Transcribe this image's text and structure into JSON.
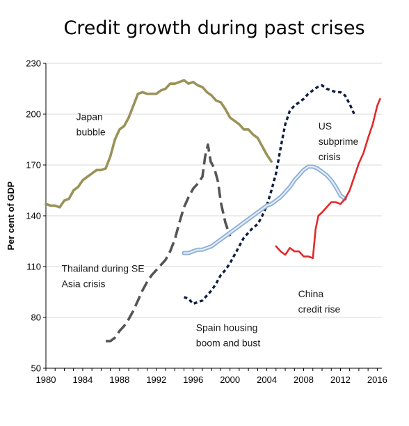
{
  "chart_data": {
    "type": "line",
    "title": "Credit growth during past crises",
    "xlabel": "",
    "ylabel": "Per cent of GDP",
    "xlim": [
      1980,
      2016.5
    ],
    "ylim": [
      50,
      230
    ],
    "xticks": [
      1980,
      1984,
      1988,
      1992,
      1996,
      2000,
      2004,
      2008,
      2012,
      2016
    ],
    "yticks": [
      50,
      80,
      110,
      140,
      170,
      200,
      230
    ],
    "grid": "horizontal",
    "legend": "none",
    "colors": {
      "japan": "#9a9258",
      "thailand": "#555555",
      "us": "#0f1f3f",
      "spain": "#aac4e4",
      "china": "#e02a2a",
      "grid": "#d9d9d9",
      "axis": "#000000"
    },
    "series": [
      {
        "key": "japan",
        "points": [
          [
            1980,
            147
          ],
          [
            1980.5,
            146
          ],
          [
            1981,
            146
          ],
          [
            1981.5,
            145
          ],
          [
            1982,
            149
          ],
          [
            1982.5,
            150
          ],
          [
            1983,
            155
          ],
          [
            1983.5,
            157
          ],
          [
            1984,
            161
          ],
          [
            1984.5,
            163
          ],
          [
            1985,
            165
          ],
          [
            1985.5,
            167
          ],
          [
            1986,
            167
          ],
          [
            1986.5,
            168
          ],
          [
            1987,
            175
          ],
          [
            1987.5,
            185
          ],
          [
            1988,
            191
          ],
          [
            1988.5,
            193
          ],
          [
            1989,
            198
          ],
          [
            1989.5,
            205
          ],
          [
            1990,
            212
          ],
          [
            1990.5,
            213
          ],
          [
            1991,
            212
          ],
          [
            1991.5,
            212
          ],
          [
            1992,
            212
          ],
          [
            1992.5,
            214
          ],
          [
            1993,
            215
          ],
          [
            1993.5,
            218
          ],
          [
            1994,
            218
          ],
          [
            1994.5,
            219
          ],
          [
            1995,
            220
          ],
          [
            1995.5,
            218
          ],
          [
            1996,
            219
          ],
          [
            1996.5,
            217
          ],
          [
            1997,
            216
          ],
          [
            1997.5,
            213
          ],
          [
            1998,
            211
          ],
          [
            1998.5,
            208
          ],
          [
            1999,
            207
          ],
          [
            1999.5,
            203
          ],
          [
            2000,
            198
          ],
          [
            2000.5,
            196
          ],
          [
            2001,
            194
          ],
          [
            2001.5,
            191
          ],
          [
            2002,
            191
          ],
          [
            2002.5,
            188
          ],
          [
            2003,
            186
          ],
          [
            2003.5,
            181
          ],
          [
            2004,
            176
          ],
          [
            2004.5,
            172
          ]
        ]
      },
      {
        "key": "thailand",
        "points": [
          [
            1986.5,
            66
          ],
          [
            1987,
            66
          ],
          [
            1987.5,
            68
          ],
          [
            1988,
            72
          ],
          [
            1988.5,
            75
          ],
          [
            1989,
            79
          ],
          [
            1989.5,
            84
          ],
          [
            1990,
            90
          ],
          [
            1990.5,
            96
          ],
          [
            1991,
            101
          ],
          [
            1991.5,
            105
          ],
          [
            1992,
            108
          ],
          [
            1992.5,
            111
          ],
          [
            1993,
            114
          ],
          [
            1993.5,
            119
          ],
          [
            1994,
            126
          ],
          [
            1994.5,
            136
          ],
          [
            1995,
            145
          ],
          [
            1995.5,
            151
          ],
          [
            1996,
            156
          ],
          [
            1996.5,
            159
          ],
          [
            1997,
            163
          ],
          [
            1997.3,
            175
          ],
          [
            1997.6,
            182
          ],
          [
            1997.9,
            172
          ],
          [
            1998.3,
            168
          ],
          [
            1998.7,
            160
          ],
          [
            1999,
            148
          ],
          [
            1999.5,
            136
          ],
          [
            2000,
            128
          ]
        ]
      },
      {
        "key": "us",
        "points": [
          [
            1995,
            92
          ],
          [
            1995.5,
            91
          ],
          [
            1996,
            88
          ],
          [
            1996.5,
            89
          ],
          [
            1997,
            90
          ],
          [
            1997.5,
            93
          ],
          [
            1998,
            96
          ],
          [
            1998.5,
            100
          ],
          [
            1999,
            105
          ],
          [
            1999.5,
            108
          ],
          [
            2000,
            112
          ],
          [
            2000.5,
            117
          ],
          [
            2001,
            122
          ],
          [
            2001.5,
            127
          ],
          [
            2002,
            130
          ],
          [
            2002.5,
            133
          ],
          [
            2003,
            135
          ],
          [
            2003.5,
            140
          ],
          [
            2004,
            146
          ],
          [
            2004.5,
            155
          ],
          [
            2005,
            165
          ],
          [
            2005.5,
            180
          ],
          [
            2006,
            194
          ],
          [
            2006.5,
            202
          ],
          [
            2007,
            205
          ],
          [
            2007.5,
            207
          ],
          [
            2008,
            209
          ],
          [
            2008.5,
            212
          ],
          [
            2009,
            214
          ],
          [
            2009.5,
            216
          ],
          [
            2010,
            217
          ],
          [
            2010.5,
            215
          ],
          [
            2011,
            214
          ],
          [
            2011.5,
            213
          ],
          [
            2012,
            213
          ],
          [
            2012.5,
            211
          ],
          [
            2013,
            206
          ],
          [
            2013.5,
            200
          ]
        ]
      },
      {
        "key": "spain",
        "points": [
          [
            1995,
            118
          ],
          [
            1995.5,
            118
          ],
          [
            1996,
            119
          ],
          [
            1996.5,
            120
          ],
          [
            1997,
            120
          ],
          [
            1997.5,
            121
          ],
          [
            1998,
            122
          ],
          [
            1998.5,
            124
          ],
          [
            1999,
            126
          ],
          [
            1999.5,
            128
          ],
          [
            2000,
            130
          ],
          [
            2000.5,
            132
          ],
          [
            2001,
            134
          ],
          [
            2001.5,
            136
          ],
          [
            2002,
            138
          ],
          [
            2002.5,
            140
          ],
          [
            2003,
            142
          ],
          [
            2003.5,
            144
          ],
          [
            2004,
            146
          ],
          [
            2004.5,
            147
          ],
          [
            2005,
            149
          ],
          [
            2005.5,
            151
          ],
          [
            2006,
            154
          ],
          [
            2006.5,
            157
          ],
          [
            2007,
            161
          ],
          [
            2007.5,
            164
          ],
          [
            2008,
            167
          ],
          [
            2008.5,
            169
          ],
          [
            2009,
            169
          ],
          [
            2009.5,
            168
          ],
          [
            2010,
            166
          ],
          [
            2010.5,
            164
          ],
          [
            2011,
            161
          ],
          [
            2011.5,
            157
          ],
          [
            2012,
            152
          ],
          [
            2012.5,
            150
          ]
        ]
      },
      {
        "key": "china",
        "points": [
          [
            2005,
            122
          ],
          [
            2005.5,
            119
          ],
          [
            2006,
            117
          ],
          [
            2006.5,
            121
          ],
          [
            2007,
            119
          ],
          [
            2007.5,
            119
          ],
          [
            2008,
            116
          ],
          [
            2008.5,
            116
          ],
          [
            2009,
            115
          ],
          [
            2009.3,
            132
          ],
          [
            2009.6,
            140
          ],
          [
            2010,
            142
          ],
          [
            2010.5,
            145
          ],
          [
            2011,
            148
          ],
          [
            2011.5,
            148
          ],
          [
            2012,
            147
          ],
          [
            2012.5,
            150
          ],
          [
            2013,
            155
          ],
          [
            2013.5,
            163
          ],
          [
            2014,
            171
          ],
          [
            2014.5,
            177
          ],
          [
            2015,
            186
          ],
          [
            2015.5,
            194
          ],
          [
            2016,
            205
          ],
          [
            2016.3,
            209
          ]
        ]
      }
    ],
    "annotations": [
      {
        "key": "japan",
        "lines": [
          "Japan",
          "bubble"
        ],
        "x": 1983.3,
        "y": 196.5
      },
      {
        "key": "us",
        "lines": [
          "US",
          "subprime",
          "crisis"
        ],
        "x": 2009.6,
        "y": 191
      },
      {
        "key": "thailand",
        "lines": [
          "Thailand during SE",
          "Asia crisis"
        ],
        "x": 1981.7,
        "y": 107
      },
      {
        "key": "china",
        "lines": [
          "China",
          "credit rise"
        ],
        "x": 2007.4,
        "y": 92
      },
      {
        "key": "spain",
        "lines": [
          "Spain housing",
          "boom and bust"
        ],
        "x": 1996.3,
        "y": 72
      }
    ]
  }
}
